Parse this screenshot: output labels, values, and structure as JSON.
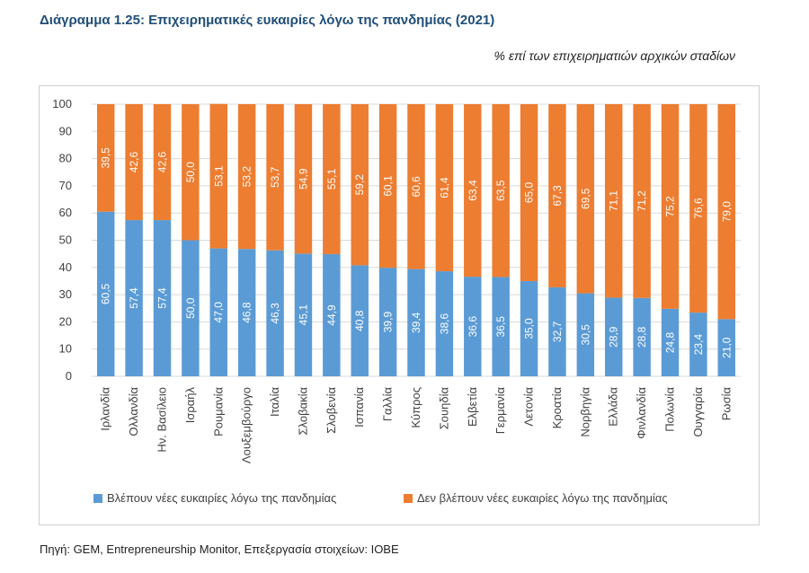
{
  "header": {
    "title": "Διάγραμμα 1.25: Επιχειρηματικές ευκαιρίες λόγω της πανδημίας (2021)",
    "subtitle": "% επί των επιχειρηματιών αρχικών σταδίων"
  },
  "footer": {
    "source": "Πηγή: GEM, Entrepreneurship Monitor, Επεξεργασία στοιχείων: IOBE"
  },
  "chart_data": {
    "type": "bar",
    "stacked": true,
    "categories": [
      "Ιρλανδία",
      "Ολλανδία",
      "Ην. Βασίλειο",
      "Ισραήλ",
      "Ρουμανία",
      "Λουξεμβούργο",
      "Ιταλία",
      "Σλοβακία",
      "Σλοβενία",
      "Ισπανία",
      "Γαλλία",
      "Κύπρος",
      "Σουηδία",
      "Ελβετία",
      "Γερμανία",
      "Λετονία",
      "Κροατία",
      "Νορβηγία",
      "Ελλάδα",
      "Φινλανδία",
      "Πολωνία",
      "Ουγγαρία",
      "Ρωσία"
    ],
    "series": [
      {
        "name": "Βλέπουν νέες ευκαιρίες λόγω της πανδημίας",
        "color": "#5b9bd5",
        "values": [
          60.5,
          57.4,
          57.4,
          50.0,
          47.0,
          46.8,
          46.3,
          45.1,
          44.9,
          40.8,
          39.9,
          39.4,
          38.6,
          36.6,
          36.5,
          35.0,
          32.7,
          30.5,
          28.9,
          28.8,
          24.8,
          23.4,
          21.0
        ]
      },
      {
        "name": "Δεν βλέπουν νέες ευκαιρίες λόγω της πανδημίας",
        "color": "#ed7d31",
        "values": [
          39.5,
          42.6,
          42.6,
          50.0,
          53.1,
          53.2,
          53.7,
          54.9,
          55.1,
          59.2,
          60.1,
          60.6,
          61.4,
          63.4,
          63.5,
          65.0,
          67.3,
          69.5,
          71.1,
          71.2,
          75.2,
          76.6,
          79.0
        ]
      }
    ],
    "ylim": [
      0,
      100
    ],
    "yticks": [
      0,
      10,
      20,
      30,
      40,
      50,
      60,
      70,
      80,
      90,
      100
    ],
    "grid": true,
    "legend_position": "bottom",
    "data_labels": true,
    "decimal_separator": ","
  }
}
